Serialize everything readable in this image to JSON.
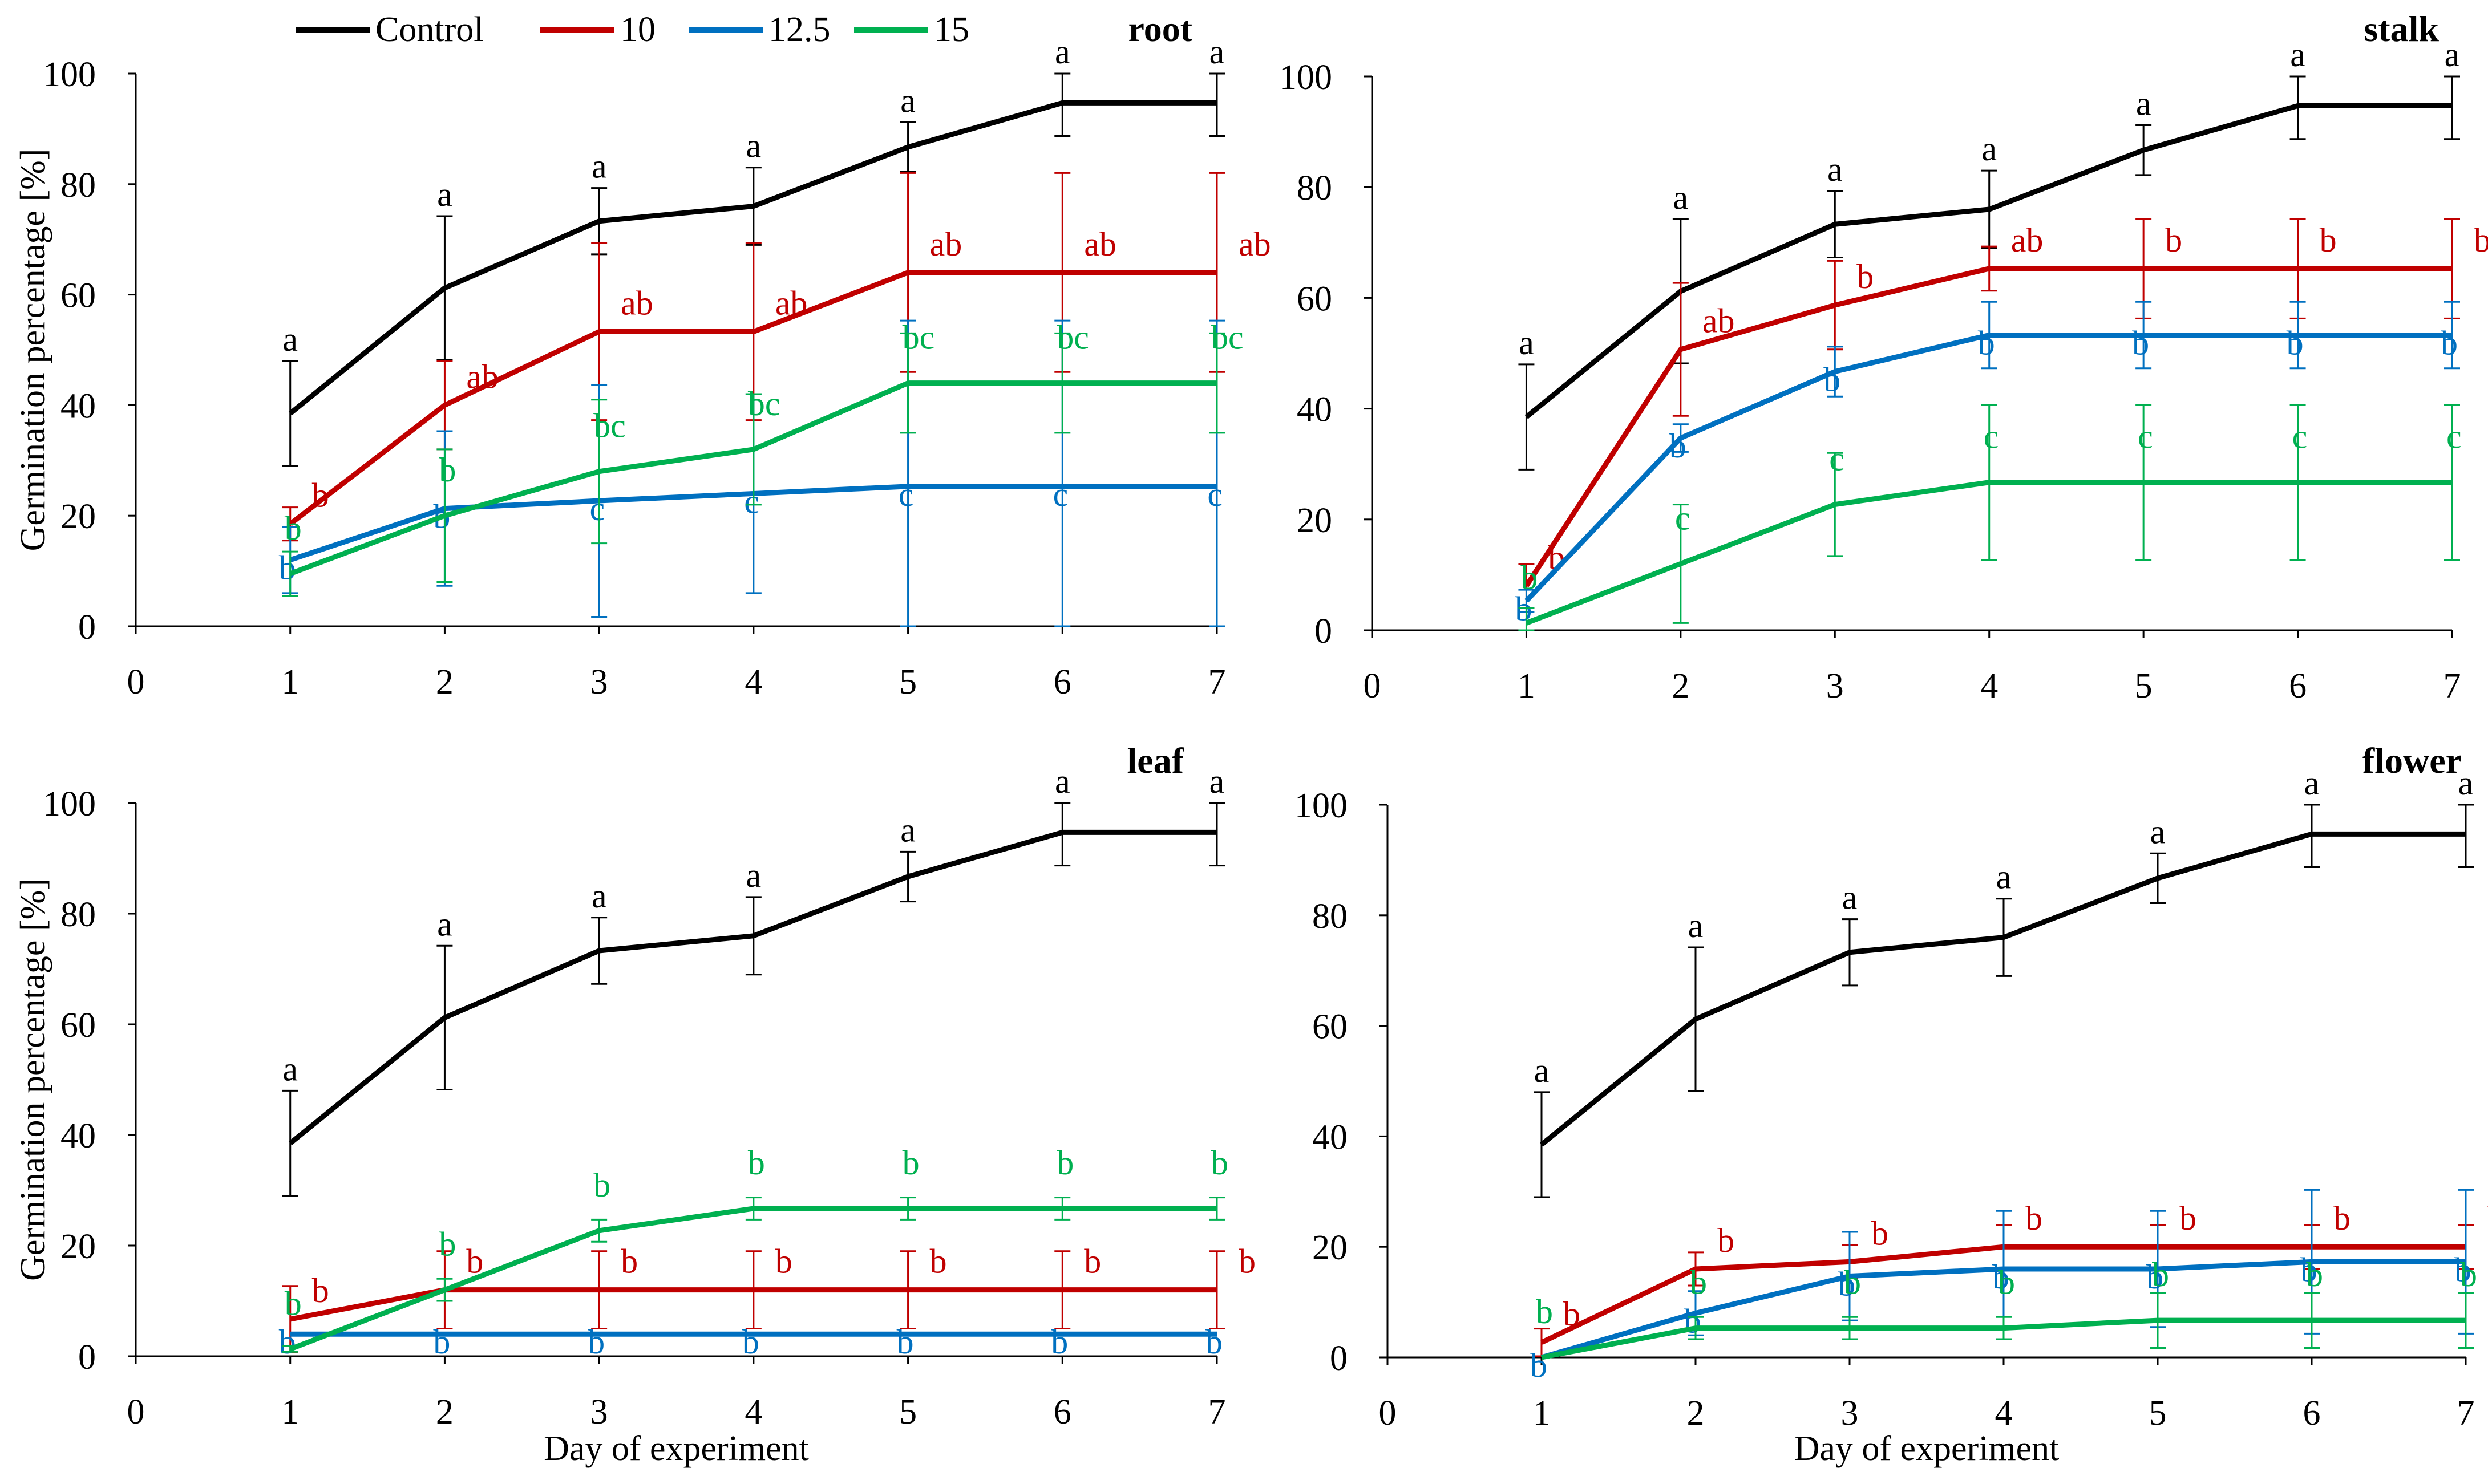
{
  "legend": {
    "items": [
      {
        "label": "Control",
        "color": "#000000"
      },
      {
        "label": "10",
        "color": "#c00000"
      },
      {
        "label": "12.5",
        "color": "#0070c0"
      },
      {
        "label": "15",
        "color": "#00b050"
      }
    ]
  },
  "chart_data": [
    {
      "type": "line",
      "title": "root",
      "ylabel": "Germination percentage [%]",
      "xlabel": "",
      "x": [
        1,
        2,
        3,
        4,
        5,
        6,
        7
      ],
      "xticks": [
        "0",
        "1",
        "2",
        "3",
        "4",
        "5",
        "6",
        "7"
      ],
      "yticks": [
        "0",
        "20",
        "40",
        "60",
        "80",
        "100"
      ],
      "xlim": [
        0,
        7
      ],
      "ylim": [
        0,
        100
      ],
      "series": [
        {
          "name": "Control",
          "color": "#000000",
          "values": [
            38.5,
            61.2,
            73.3,
            76,
            86.7,
            94.7,
            94.7
          ],
          "errors": [
            9.5,
            13,
            6,
            7,
            4.5,
            6,
            6
          ],
          "letters": [
            "a",
            "a",
            "a",
            "a",
            "a",
            "a",
            "a"
          ]
        },
        {
          "name": "10",
          "color": "#c00000",
          "values": [
            18.5,
            40,
            53.3,
            53.3,
            64,
            64,
            64
          ],
          "errors": [
            3,
            8,
            16,
            16,
            18,
            18,
            18
          ],
          "letters": [
            "b",
            "ab",
            "ab",
            "ab",
            "ab",
            "ab",
            "ab"
          ]
        },
        {
          "name": "12.5",
          "color": "#0070c0",
          "values": [
            12,
            21.3,
            22.7,
            24,
            25.3,
            25.3,
            25.3
          ],
          "errors": [
            6,
            14,
            21,
            18,
            30,
            30,
            30
          ],
          "letters": [
            "b",
            "b",
            "c",
            "c",
            "c",
            "c",
            "c"
          ]
        },
        {
          "name": "15",
          "color": "#00b050",
          "values": [
            9.5,
            20,
            28,
            32,
            44,
            44,
            44
          ],
          "errors": [
            4,
            12,
            13,
            10,
            9,
            9,
            9
          ],
          "letters": [
            "b",
            "b",
            "bc",
            "bc",
            "bc",
            "bc",
            "bc"
          ]
        }
      ]
    },
    {
      "type": "line",
      "title": "stalk",
      "ylabel": "",
      "xlabel": "",
      "x": [
        1,
        2,
        3,
        4,
        5,
        6,
        7
      ],
      "xticks": [
        "0",
        "1",
        "2",
        "3",
        "4",
        "5",
        "6",
        "7"
      ],
      "yticks": [
        "0",
        "20",
        "40",
        "60",
        "80",
        "100"
      ],
      "xlim": [
        0,
        7
      ],
      "ylim": [
        0,
        100
      ],
      "series": [
        {
          "name": "Control",
          "color": "#000000",
          "values": [
            38.5,
            61.2,
            73.3,
            76,
            86.7,
            94.7,
            94.7
          ],
          "errors": [
            9.5,
            13,
            6,
            7,
            4.5,
            6,
            6
          ],
          "letters": [
            "a",
            "a",
            "a",
            "a",
            "a",
            "a",
            "a"
          ]
        },
        {
          "name": "10",
          "color": "#c00000",
          "values": [
            8,
            50.7,
            58.7,
            65.3,
            65.3,
            65.3,
            65.3
          ],
          "errors": [
            4,
            12,
            8,
            4,
            9,
            9,
            9
          ],
          "letters": [
            "b",
            "ab",
            "b",
            "ab",
            "b",
            "b",
            "b"
          ]
        },
        {
          "name": "12.5",
          "color": "#0070c0",
          "values": [
            5.3,
            34.7,
            46.7,
            53.3,
            53.3,
            53.3,
            53.3
          ],
          "errors": [
            2,
            2.5,
            4.5,
            6,
            6,
            6,
            6
          ],
          "letters": [
            "b",
            "b",
            "b",
            "b",
            "b",
            "b",
            "b"
          ]
        },
        {
          "name": "15",
          "color": "#00b050",
          "values": [
            1.3,
            12,
            22.7,
            26.7,
            26.7,
            26.7,
            26.7
          ],
          "errors": [
            2.7,
            10.7,
            9.3,
            14,
            14,
            14,
            14
          ],
          "letters": [
            "b",
            "c",
            "c",
            "c",
            "c",
            "c",
            "c"
          ]
        }
      ]
    },
    {
      "type": "line",
      "title": "leaf",
      "ylabel": "Germination percentage [%]",
      "xlabel": "Day of experiment",
      "x": [
        1,
        2,
        3,
        4,
        5,
        6,
        7
      ],
      "xticks": [
        "0",
        "1",
        "2",
        "3",
        "4",
        "5",
        "6",
        "7"
      ],
      "yticks": [
        "0",
        "20",
        "40",
        "60",
        "80",
        "100"
      ],
      "xlim": [
        0,
        7
      ],
      "ylim": [
        0,
        100
      ],
      "series": [
        {
          "name": "Control",
          "color": "#000000",
          "values": [
            38.5,
            61.2,
            73.3,
            76,
            86.7,
            94.7,
            94.7
          ],
          "errors": [
            9.5,
            13,
            6,
            7,
            4.5,
            6,
            6
          ],
          "letters": [
            "a",
            "a",
            "a",
            "a",
            "a",
            "a",
            "a"
          ]
        },
        {
          "name": "10",
          "color": "#c00000",
          "values": [
            6.7,
            12,
            12,
            12,
            12,
            12,
            12
          ],
          "errors": [
            6,
            7,
            7,
            7,
            7,
            7,
            7
          ],
          "letters": [
            "b",
            "b",
            "b",
            "b",
            "b",
            "b",
            "b"
          ]
        },
        {
          "name": "12.5",
          "color": "#0070c0",
          "values": [
            4,
            4,
            4,
            4,
            4,
            4,
            4
          ],
          "errors": [
            0,
            0,
            0,
            0,
            0,
            0,
            0
          ],
          "letters": [
            "b",
            "b",
            "b",
            "b",
            "b",
            "b",
            "b"
          ]
        },
        {
          "name": "15",
          "color": "#00b050",
          "values": [
            1.3,
            12,
            22.7,
            26.7,
            26.7,
            26.7,
            26.7
          ],
          "errors": [
            0.5,
            2,
            2,
            2,
            2,
            2,
            2
          ],
          "letters": [
            "b",
            "b",
            "b",
            "b",
            "b",
            "b",
            "b"
          ]
        }
      ]
    },
    {
      "type": "line",
      "title": "flower",
      "ylabel": "",
      "xlabel": "Day of experiment",
      "x": [
        1,
        2,
        3,
        4,
        5,
        6,
        7
      ],
      "xticks": [
        "0",
        "1",
        "2",
        "3",
        "4",
        "5",
        "6",
        "7"
      ],
      "yticks": [
        "0",
        "20",
        "40",
        "60",
        "80",
        "100"
      ],
      "xlim": [
        0,
        7
      ],
      "ylim": [
        0,
        100
      ],
      "series": [
        {
          "name": "Control",
          "color": "#000000",
          "values": [
            38.5,
            61.2,
            73.3,
            76,
            86.7,
            94.7,
            94.7
          ],
          "errors": [
            9.5,
            13,
            6,
            7,
            4.5,
            6,
            6
          ],
          "letters": [
            "a",
            "a",
            "a",
            "a",
            "a",
            "a",
            "a"
          ]
        },
        {
          "name": "10",
          "color": "#c00000",
          "values": [
            2.7,
            16,
            17.3,
            20,
            20,
            20,
            20
          ],
          "errors": [
            2.5,
            3,
            3,
            4,
            4,
            4,
            4
          ],
          "letters": [
            "b",
            "b",
            "b",
            "b",
            "b",
            "b",
            "b"
          ]
        },
        {
          "name": "12.5",
          "color": "#0070c0",
          "values": [
            0,
            8,
            14.7,
            16,
            16,
            17.3,
            17.3
          ],
          "errors": [
            0,
            4,
            8,
            10.5,
            10.5,
            13,
            13
          ],
          "letters": [
            "b",
            "b",
            "b",
            "b",
            "b",
            "b",
            "b"
          ]
        },
        {
          "name": "15",
          "color": "#00b050",
          "values": [
            0,
            5.3,
            5.3,
            5.3,
            6.7,
            6.7,
            6.7
          ],
          "errors": [
            0,
            2,
            2,
            2,
            5,
            5,
            5
          ],
          "letters": [
            "b",
            "b",
            "b",
            "b",
            "b",
            "b",
            "b"
          ]
        }
      ]
    }
  ]
}
